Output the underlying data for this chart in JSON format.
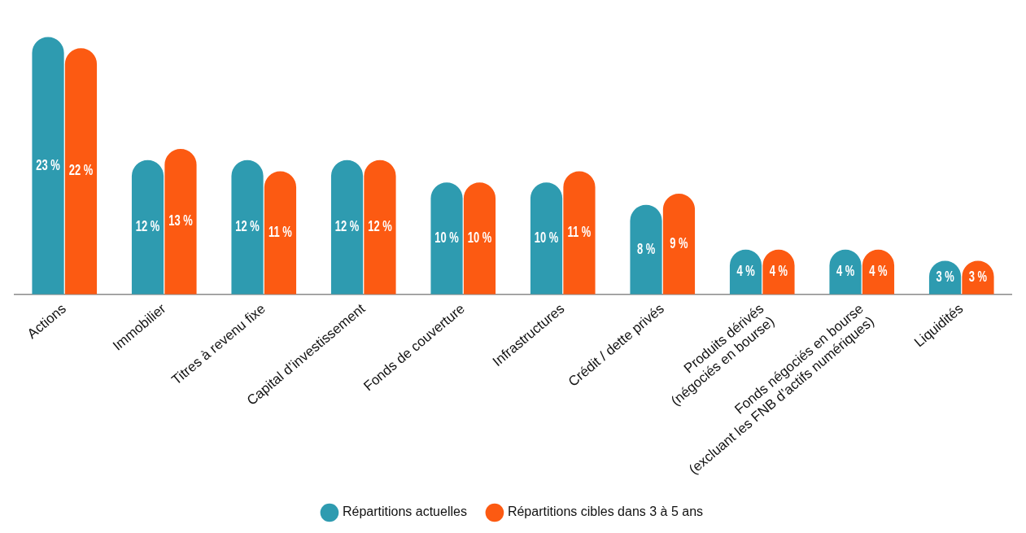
{
  "chart_data": {
    "type": "bar",
    "categories": [
      "Actions",
      "Immobilier",
      "Titres à revenu fixe",
      "Capital d’investissement",
      "Fonds de couverture",
      "Infrastructures",
      "Crédit / dette privés",
      "Produits dérivés\n(négociés en bourse)",
      "Fonds négociés en bourse\n(excluant les FNB d’actifs numériques)",
      "Liquidités"
    ],
    "series": [
      {
        "name": "Répartitions actuelles",
        "color": "#2e9bb0",
        "values": [
          23,
          12,
          12,
          12,
          10,
          10,
          8,
          4,
          4,
          3
        ],
        "value_labels": [
          "23 %",
          "12 %",
          "12 %",
          "12 %",
          "10 %",
          "10 %",
          "8 %",
          "4 %",
          "4 %",
          "3 %"
        ]
      },
      {
        "name": "Répartitions cibles dans 3 à 5 ans",
        "color": "#fc5a12",
        "values": [
          22,
          13,
          11,
          12,
          10,
          11,
          9,
          4,
          4,
          3
        ],
        "value_labels": [
          "22 %",
          "13 %",
          "11 %",
          "12 %",
          "10 %",
          "11 %",
          "9 %",
          "4 %",
          "4 %",
          "3 %"
        ]
      }
    ],
    "grid": false,
    "legend": "bottom"
  }
}
